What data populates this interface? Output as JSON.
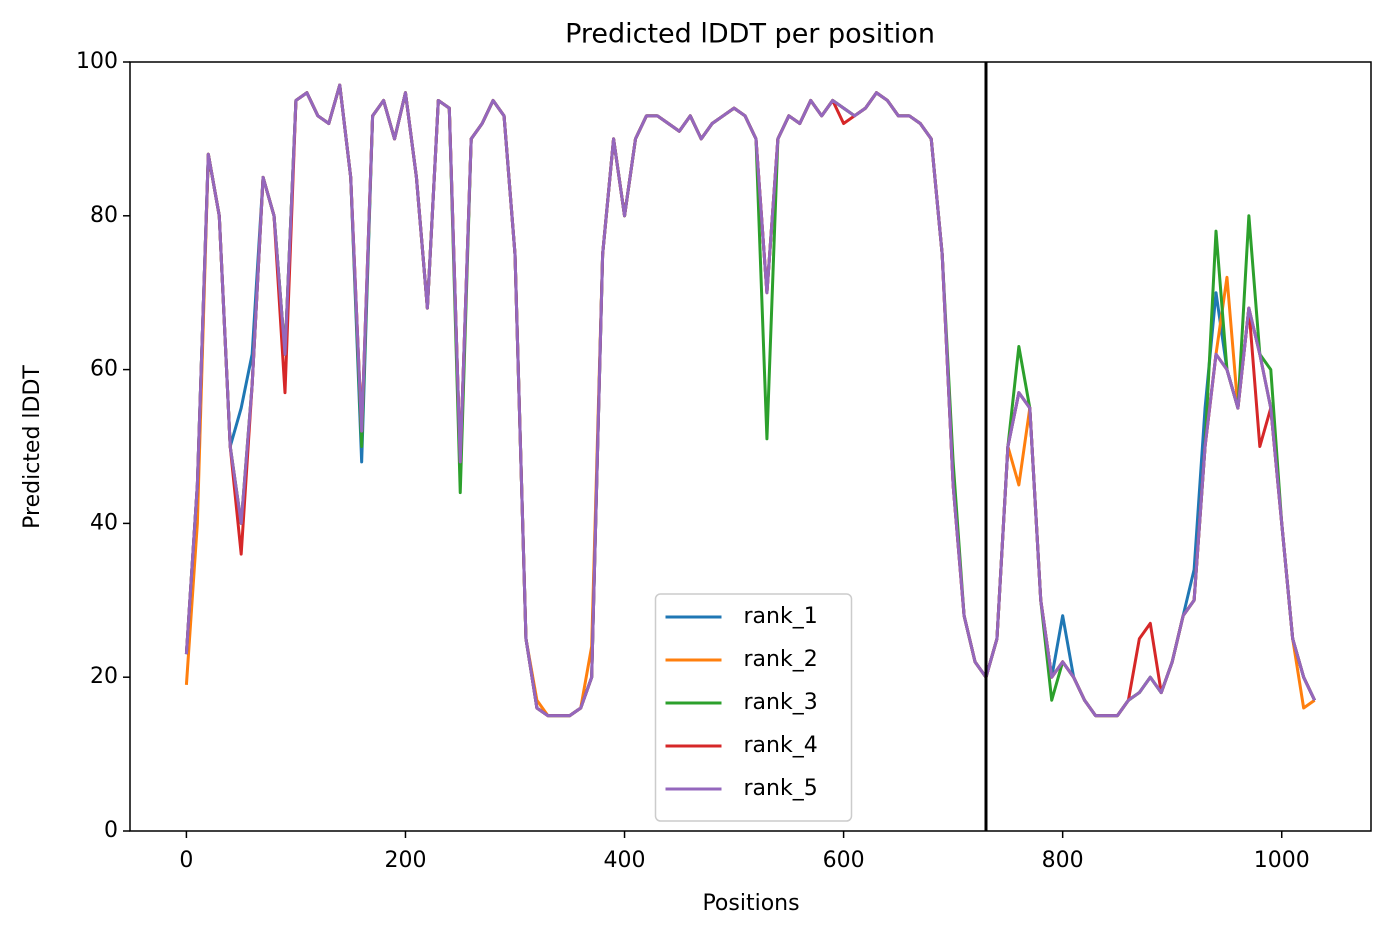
{
  "chart_data": {
    "type": "line",
    "title": "Predicted lDDT per position",
    "xlabel": "Positions",
    "ylabel": "Predicted lDDT",
    "xlim": [
      -51.5,
      1081.5
    ],
    "ylim": [
      0,
      100
    ],
    "xticks": [
      0,
      200,
      400,
      600,
      800,
      1000
    ],
    "yticks": [
      0,
      20,
      40,
      60,
      80,
      100
    ],
    "vline": 730,
    "vline_color": "#000000",
    "legend": "lower center",
    "x": [
      0,
      10,
      20,
      30,
      40,
      50,
      60,
      70,
      80,
      90,
      100,
      110,
      120,
      130,
      140,
      150,
      160,
      170,
      180,
      190,
      200,
      210,
      220,
      230,
      240,
      250,
      260,
      270,
      280,
      290,
      300,
      310,
      320,
      330,
      340,
      350,
      360,
      370,
      380,
      390,
      400,
      410,
      420,
      430,
      440,
      450,
      460,
      470,
      480,
      490,
      500,
      510,
      520,
      530,
      540,
      550,
      560,
      570,
      580,
      590,
      600,
      610,
      620,
      630,
      640,
      650,
      660,
      670,
      680,
      690,
      700,
      710,
      720,
      730,
      740,
      750,
      760,
      770,
      780,
      790,
      800,
      810,
      820,
      830,
      840,
      850,
      860,
      870,
      880,
      890,
      900,
      910,
      920,
      930,
      940,
      950,
      960,
      970,
      980,
      990,
      1000,
      1010,
      1020,
      1030
    ],
    "series": [
      {
        "name": "rank_1",
        "color": "#1f77b4",
        "values": [
          23,
          45,
          88,
          80,
          50,
          55,
          62,
          85,
          80,
          62,
          95,
          96,
          93,
          92,
          97,
          85,
          48,
          93,
          95,
          90,
          96,
          85,
          68,
          95,
          94,
          48,
          90,
          92,
          95,
          93,
          75,
          25,
          16,
          15,
          15,
          15,
          16,
          20,
          75,
          90,
          80,
          90,
          93,
          93,
          92,
          91,
          93,
          90,
          92,
          93,
          94,
          93,
          90,
          70,
          90,
          93,
          92,
          95,
          93,
          95,
          94,
          93,
          94,
          96,
          95,
          93,
          93,
          92,
          90,
          75,
          45,
          28,
          22,
          20,
          25,
          50,
          57,
          55,
          30,
          20,
          28,
          20,
          17,
          15,
          15,
          15,
          17,
          18,
          20,
          18,
          22,
          28,
          34,
          55,
          70,
          60,
          55,
          68,
          62,
          55,
          40,
          25,
          20,
          17
        ]
      },
      {
        "name": "rank_2",
        "color": "#ff7f0e",
        "values": [
          19,
          40,
          88,
          80,
          50,
          40,
          58,
          85,
          80,
          62,
          95,
          96,
          93,
          92,
          97,
          85,
          52,
          93,
          95,
          90,
          96,
          85,
          68,
          95,
          94,
          48,
          90,
          92,
          95,
          93,
          75,
          25,
          17,
          15,
          15,
          15,
          16,
          24,
          75,
          90,
          80,
          90,
          93,
          93,
          92,
          91,
          93,
          90,
          92,
          93,
          94,
          93,
          90,
          70,
          90,
          93,
          92,
          95,
          93,
          95,
          94,
          93,
          94,
          96,
          95,
          93,
          93,
          92,
          90,
          75,
          45,
          28,
          22,
          20,
          25,
          50,
          45,
          55,
          30,
          20,
          22,
          20,
          17,
          15,
          15,
          15,
          17,
          18,
          20,
          18,
          22,
          28,
          30,
          50,
          62,
          72,
          55,
          68,
          62,
          55,
          40,
          25,
          16,
          17
        ]
      },
      {
        "name": "rank_3",
        "color": "#2ca02c",
        "values": [
          23,
          45,
          88,
          80,
          50,
          40,
          58,
          85,
          80,
          62,
          95,
          96,
          93,
          92,
          97,
          85,
          50,
          93,
          95,
          90,
          96,
          85,
          68,
          95,
          94,
          44,
          90,
          92,
          95,
          93,
          75,
          25,
          16,
          15,
          15,
          15,
          16,
          20,
          75,
          90,
          80,
          90,
          93,
          93,
          92,
          91,
          93,
          90,
          92,
          93,
          94,
          93,
          90,
          51,
          90,
          93,
          92,
          95,
          93,
          95,
          94,
          93,
          94,
          96,
          95,
          93,
          93,
          92,
          90,
          75,
          48,
          28,
          22,
          20,
          25,
          50,
          63,
          55,
          30,
          17,
          22,
          20,
          17,
          15,
          15,
          15,
          17,
          18,
          20,
          18,
          22,
          28,
          30,
          50,
          78,
          60,
          55,
          80,
          62,
          60,
          40,
          25,
          20,
          17
        ]
      },
      {
        "name": "rank_4",
        "color": "#d62728",
        "values": [
          23,
          45,
          88,
          80,
          50,
          36,
          58,
          85,
          80,
          57,
          95,
          96,
          93,
          92,
          97,
          85,
          52,
          93,
          95,
          90,
          96,
          85,
          68,
          95,
          94,
          48,
          90,
          92,
          95,
          93,
          75,
          25,
          16,
          15,
          15,
          15,
          16,
          20,
          75,
          90,
          80,
          90,
          93,
          93,
          92,
          91,
          93,
          90,
          92,
          93,
          94,
          93,
          90,
          70,
          90,
          93,
          92,
          95,
          93,
          95,
          92,
          93,
          94,
          96,
          95,
          93,
          93,
          92,
          90,
          75,
          45,
          28,
          22,
          20,
          25,
          50,
          57,
          55,
          30,
          20,
          22,
          20,
          17,
          15,
          15,
          15,
          17,
          25,
          27,
          18,
          22,
          28,
          30,
          50,
          62,
          60,
          55,
          68,
          50,
          55,
          40,
          25,
          20,
          17
        ]
      },
      {
        "name": "rank_5",
        "color": "#9467bd",
        "values": [
          23,
          45,
          88,
          80,
          50,
          40,
          58,
          85,
          80,
          62,
          95,
          96,
          93,
          92,
          97,
          85,
          52,
          93,
          95,
          90,
          96,
          85,
          68,
          95,
          94,
          48,
          90,
          92,
          95,
          93,
          75,
          25,
          16,
          15,
          15,
          15,
          16,
          20,
          75,
          90,
          80,
          90,
          93,
          93,
          92,
          91,
          93,
          90,
          92,
          93,
          94,
          93,
          90,
          70,
          90,
          93,
          92,
          95,
          93,
          95,
          94,
          93,
          94,
          96,
          95,
          93,
          93,
          92,
          90,
          75,
          45,
          28,
          22,
          20,
          25,
          50,
          57,
          55,
          30,
          20,
          22,
          20,
          17,
          15,
          15,
          15,
          17,
          18,
          20,
          18,
          22,
          28,
          30,
          50,
          62,
          60,
          55,
          68,
          62,
          55,
          40,
          25,
          20,
          17
        ]
      }
    ]
  }
}
